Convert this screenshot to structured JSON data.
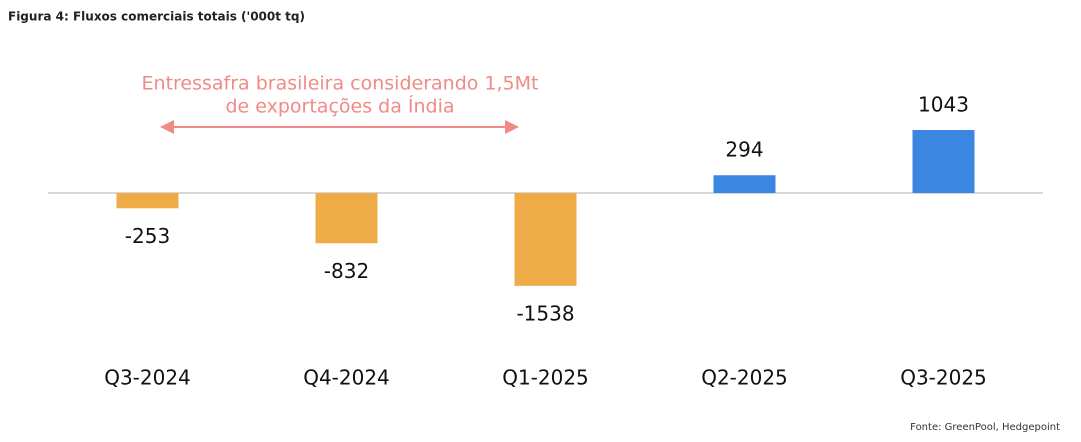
{
  "chart_data": {
    "type": "bar",
    "title": "Figura 4: Fluxos comerciais totais ('000t tq)",
    "annotation": [
      "Entressafra brasileira considerando 1,5Mt",
      "de exportações da Índia"
    ],
    "source": "Fonte: GreenPool, Hedgepoint",
    "categories": [
      "Q3-2024",
      "Q4-2024",
      "Q1-2025",
      "Q2-2025",
      "Q3-2025"
    ],
    "values": [
      -253,
      -832,
      -1538,
      294,
      1043
    ],
    "colors": [
      "#efab47",
      "#efab47",
      "#efab47",
      "#3a86e0",
      "#3a86e0"
    ]
  }
}
